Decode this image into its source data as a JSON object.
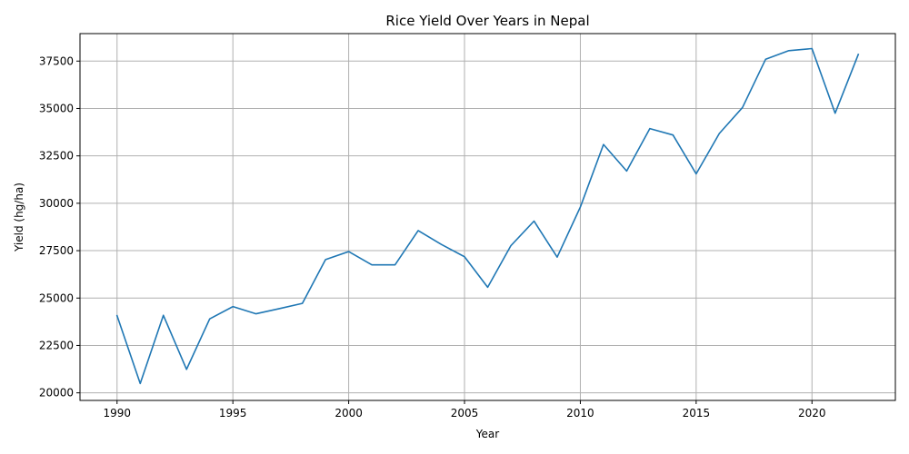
{
  "chart_data": {
    "type": "line",
    "title": "Rice Yield Over Years in Nepal",
    "xlabel": "Year",
    "ylabel": "Yield (hg/ha)",
    "xlim": [
      1988.4,
      2023.6
    ],
    "ylim": [
      19600,
      38950
    ],
    "x_ticks": [
      1990,
      1995,
      2000,
      2005,
      2010,
      2015,
      2020
    ],
    "y_ticks": [
      20000,
      22500,
      25000,
      27500,
      30000,
      32500,
      35000,
      37500
    ],
    "grid": true,
    "line_color": "#1f77b4",
    "series": [
      {
        "x": [
          1990,
          1991,
          1992,
          1993,
          1994,
          1995,
          1996,
          1997,
          1998,
          1999,
          2000,
          2001,
          2002,
          2003,
          2004,
          2005,
          2006,
          2007,
          2008,
          2009,
          2010,
          2011,
          2012,
          2013,
          2014,
          2015,
          2016,
          2017,
          2018,
          2019,
          2020,
          2021,
          2022
        ],
        "values": [
          24070,
          20490,
          24090,
          21240,
          23900,
          24550,
          24170,
          24440,
          24720,
          27030,
          27450,
          26750,
          26750,
          28560,
          27830,
          27180,
          25570,
          27760,
          29060,
          27160,
          29800,
          33100,
          31700,
          33940,
          33600,
          31550,
          33680,
          35050,
          37600,
          38050,
          38160,
          34750,
          37850
        ]
      }
    ]
  }
}
